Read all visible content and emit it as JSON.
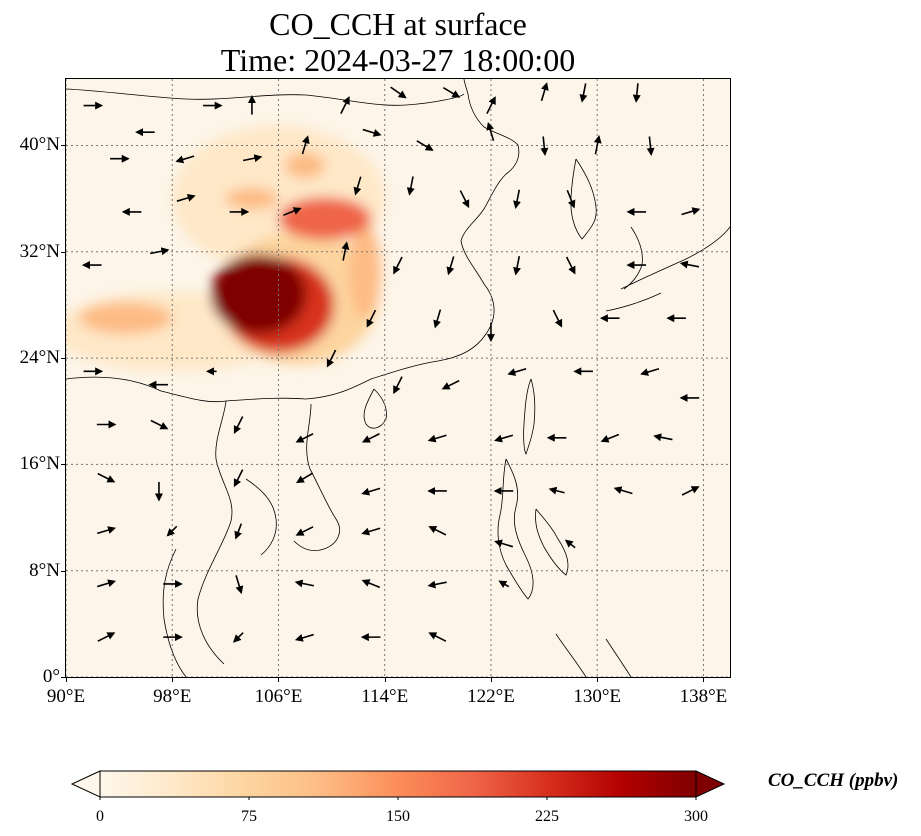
{
  "title": {
    "line1": "CO_CCH at surface",
    "line2": "Time: 2024-03-27 18:00:00"
  },
  "map": {
    "extent": {
      "lon_min": 90,
      "lon_max": 140,
      "lat_min": 0,
      "lat_max": 45
    },
    "lat_ticks": [
      {
        "value": 0,
        "label": "0°"
      },
      {
        "value": 8,
        "label": "8°N"
      },
      {
        "value": 16,
        "label": "16°N"
      },
      {
        "value": 24,
        "label": "24°N"
      },
      {
        "value": 32,
        "label": "32°N"
      },
      {
        "value": 40,
        "label": "40°N"
      }
    ],
    "lon_ticks": [
      {
        "value": 90,
        "label": "90°E"
      },
      {
        "value": 98,
        "label": "98°E"
      },
      {
        "value": 106,
        "label": "106°E"
      },
      {
        "value": 114,
        "label": "114°E"
      },
      {
        "value": 122,
        "label": "122°E"
      },
      {
        "value": 130,
        "label": "130°E"
      },
      {
        "value": 138,
        "label": "138°E"
      }
    ],
    "gridlines": true,
    "colormap": "OrRd",
    "plumes": [
      {
        "lon": 104.5,
        "lat": 28.8,
        "rlon": 3.6,
        "rlat": 3.0,
        "value": 300
      },
      {
        "lon": 106.0,
        "lat": 28.0,
        "rlon": 4.2,
        "rlat": 3.6,
        "value": 220
      },
      {
        "lon": 107.5,
        "lat": 28.5,
        "rlon": 6.0,
        "rlat": 5.0,
        "value": 90
      },
      {
        "lon": 109.5,
        "lat": 34.5,
        "rlon": 3.5,
        "rlat": 1.6,
        "value": 170
      },
      {
        "lon": 106.0,
        "lat": 36.0,
        "rlon": 8.0,
        "rlat": 5.5,
        "value": 45
      },
      {
        "lon": 112.5,
        "lat": 30.5,
        "rlon": 1.2,
        "rlat": 3.5,
        "value": 120
      },
      {
        "lon": 94.5,
        "lat": 27.0,
        "rlon": 3.5,
        "rlat": 1.2,
        "value": 110
      },
      {
        "lon": 98.0,
        "lat": 26.0,
        "rlon": 9.0,
        "rlat": 3.0,
        "value": 25
      },
      {
        "lon": 104.0,
        "lat": 36.0,
        "rlon": 2.0,
        "rlat": 0.8,
        "value": 130
      },
      {
        "lon": 108.0,
        "lat": 38.5,
        "rlon": 1.5,
        "rlat": 1.0,
        "value": 110
      }
    ],
    "wind_vectors": [
      [
        92,
        43,
        1,
        0
      ],
      [
        96,
        41,
        -1,
        0
      ],
      [
        101,
        43,
        1,
        0
      ],
      [
        104,
        43,
        0,
        1
      ],
      [
        111,
        43,
        0.5,
        1
      ],
      [
        115,
        44,
        1,
        -0.7
      ],
      [
        119,
        44,
        1,
        -0.6
      ],
      [
        122,
        43,
        0.5,
        1
      ],
      [
        126,
        44,
        0.3,
        1
      ],
      [
        129,
        44,
        -0.2,
        -1
      ],
      [
        133,
        44,
        -0.1,
        -1
      ],
      [
        94,
        39,
        1,
        0
      ],
      [
        99,
        39,
        -1,
        -0.3
      ],
      [
        104,
        39,
        1,
        0.2
      ],
      [
        108,
        40,
        0.3,
        1
      ],
      [
        113,
        41,
        1,
        -0.3
      ],
      [
        117,
        40,
        1,
        -0.6
      ],
      [
        122,
        41,
        -0.3,
        1
      ],
      [
        126,
        40,
        0.1,
        -1
      ],
      [
        130,
        40,
        0.2,
        1
      ],
      [
        134,
        40,
        0.1,
        -1
      ],
      [
        95,
        35,
        -1,
        0
      ],
      [
        99,
        36,
        1,
        0.3
      ],
      [
        103,
        35,
        1,
        0
      ],
      [
        107,
        35,
        1,
        0.4
      ],
      [
        112,
        37,
        -0.3,
        -1
      ],
      [
        116,
        37,
        -0.2,
        -1
      ],
      [
        120,
        36,
        0.5,
        -1
      ],
      [
        124,
        36,
        -0.2,
        -1
      ],
      [
        128,
        36,
        0.4,
        -1
      ],
      [
        133,
        35,
        -1,
        0
      ],
      [
        137,
        35,
        1,
        0.3
      ],
      [
        92,
        31,
        -1,
        0
      ],
      [
        97,
        32,
        1,
        0.2
      ],
      [
        111,
        32,
        0.2,
        1
      ],
      [
        115,
        31,
        -0.5,
        -1
      ],
      [
        119,
        31,
        -0.3,
        -1
      ],
      [
        124,
        31,
        -0.2,
        -1
      ],
      [
        128,
        31,
        0.5,
        -1
      ],
      [
        133,
        31,
        -1,
        0
      ],
      [
        137,
        31,
        -1,
        0.2
      ],
      [
        113,
        27,
        -0.5,
        -1
      ],
      [
        118,
        27,
        -0.3,
        -1
      ],
      [
        122,
        26,
        0,
        -1
      ],
      [
        127,
        27,
        0.5,
        -1
      ],
      [
        131,
        27,
        -1,
        0
      ],
      [
        136,
        27,
        -1,
        0
      ],
      [
        92,
        23,
        1,
        0
      ],
      [
        97,
        22,
        -1,
        0
      ],
      [
        101,
        23,
        -0.5,
        0
      ],
      [
        110,
        24,
        -0.5,
        -1
      ],
      [
        115,
        22,
        -0.5,
        -1
      ],
      [
        119,
        22,
        -1,
        -0.5
      ],
      [
        124,
        23,
        -1,
        -0.3
      ],
      [
        129,
        23,
        -1,
        0
      ],
      [
        134,
        23,
        -1,
        -0.3
      ],
      [
        137,
        21,
        -1,
        0
      ],
      [
        93,
        19,
        1,
        0
      ],
      [
        97,
        19,
        1,
        -0.5
      ],
      [
        103,
        19,
        -0.5,
        -1
      ],
      [
        108,
        18,
        -1,
        -0.5
      ],
      [
        113,
        18,
        -1,
        -0.5
      ],
      [
        118,
        18,
        -1,
        -0.3
      ],
      [
        123,
        18,
        -1,
        -0.3
      ],
      [
        127,
        18,
        -1,
        0
      ],
      [
        131,
        18,
        -1,
        -0.4
      ],
      [
        135,
        18,
        -1,
        0.2
      ],
      [
        93,
        15,
        1,
        -0.5
      ],
      [
        97,
        14,
        0,
        -1
      ],
      [
        103,
        15,
        -0.5,
        -1
      ],
      [
        108,
        15,
        -1,
        -0.6
      ],
      [
        113,
        14,
        -1,
        -0.3
      ],
      [
        118,
        14,
        -1,
        0
      ],
      [
        123,
        14,
        -1,
        0
      ],
      [
        127,
        14,
        -0.8,
        0.2
      ],
      [
        132,
        14,
        -1,
        0.3
      ],
      [
        137,
        14,
        1,
        0.5
      ],
      [
        93,
        11,
        1,
        0.3
      ],
      [
        98,
        11,
        -0.5,
        -0.5
      ],
      [
        103,
        11,
        -0.3,
        -0.8
      ],
      [
        108,
        11,
        -1,
        -0.5
      ],
      [
        113,
        11,
        -1,
        -0.3
      ],
      [
        118,
        11,
        -1,
        0.5
      ],
      [
        123,
        10,
        -1,
        0.3
      ],
      [
        128,
        10,
        -0.5,
        0.4
      ],
      [
        93,
        7,
        1,
        0.3
      ],
      [
        98,
        7,
        1,
        0
      ],
      [
        103,
        7,
        0.3,
        -1
      ],
      [
        108,
        7,
        -1,
        0.2
      ],
      [
        113,
        7,
        -1,
        0.4
      ],
      [
        118,
        7,
        -1,
        -0.2
      ],
      [
        123,
        7,
        -0.5,
        0.3
      ],
      [
        93,
        3,
        1,
        0.5
      ],
      [
        98,
        3,
        1,
        0
      ],
      [
        103,
        3,
        -0.5,
        -0.5
      ],
      [
        108,
        3,
        -1,
        -0.3
      ],
      [
        113,
        3,
        -1,
        0
      ],
      [
        118,
        3,
        -1,
        0.5
      ]
    ]
  },
  "colorbar": {
    "min": 0,
    "max": 300,
    "ticks": [
      {
        "value": 0,
        "label": "0"
      },
      {
        "value": 75,
        "label": "75"
      },
      {
        "value": 150,
        "label": "150"
      },
      {
        "value": 225,
        "label": "225"
      },
      {
        "value": 300,
        "label": "300"
      }
    ],
    "label": "CO_CCH (ppbv)",
    "colors": [
      "#fff7ec",
      "#fee8c8",
      "#fdd49e",
      "#fdbb84",
      "#fc8d59",
      "#ef6548",
      "#d7301f",
      "#b30000",
      "#7f0000"
    ]
  }
}
